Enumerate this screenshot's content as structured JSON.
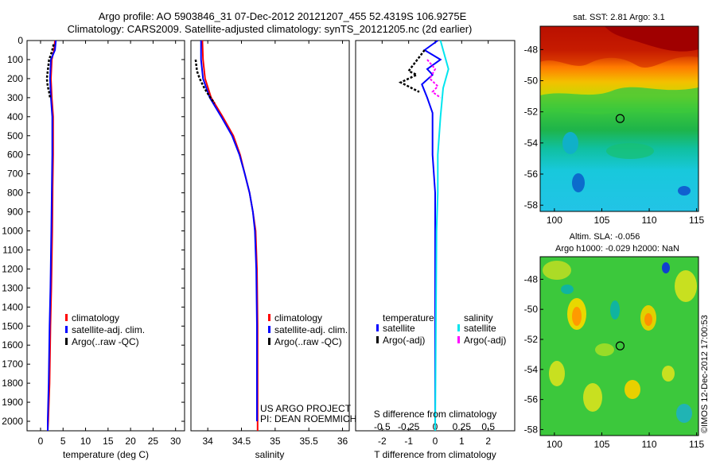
{
  "header": {
    "line1": "Argo profile: AO 5903846_31 07-Dec-2012 20121207_455 52.4319S 106.9275E",
    "line2": "Climatology: CARS2009. Satellite-adjusted climatology: synTS_20121205.nc (2d earlier)"
  },
  "colors": {
    "climatology": "#ff0000",
    "satellite": "#0000ff",
    "argo": "#000000",
    "sal_satellite": "#00e5ee",
    "sal_argo": "#ff00ff"
  },
  "depth_axis": {
    "range": [
      0,
      2050
    ],
    "ticks": [
      "0",
      "100",
      "200",
      "300",
      "400",
      "500",
      "600",
      "700",
      "800",
      "900",
      "1000",
      "1100",
      "1200",
      "1300",
      "1400",
      "1500",
      "1600",
      "1700",
      "1800",
      "1900",
      "2000"
    ]
  },
  "legend": {
    "climatology": "climatology",
    "satellite_clim": "satellite-adj. clim.",
    "argo_raw": "Argo(..raw -QC)",
    "temperature_head": "temperature",
    "salinity_head": "salinity",
    "satellite": "satellite",
    "argo_adj": "Argo(-adj)"
  },
  "chart_data": [
    {
      "id": "temperature",
      "type": "line",
      "xlabel": "temperature (deg C)",
      "ylabel": "depth",
      "xlim": [
        -3,
        32
      ],
      "ylim": [
        2050,
        0
      ],
      "xticks": [
        0,
        5,
        10,
        15,
        20,
        25,
        30
      ],
      "xticklabels": [
        "0",
        "5",
        "10",
        "15",
        "20",
        "25",
        "30"
      ],
      "series": [
        {
          "name": "climatology",
          "color_key": "climatology",
          "points": [
            [
              3.2,
              0
            ],
            [
              3.0,
              50
            ],
            [
              2.5,
              100
            ],
            [
              2.3,
              200
            ],
            [
              2.5,
              300
            ],
            [
              2.8,
              400
            ],
            [
              2.8,
              600
            ],
            [
              2.7,
              770
            ],
            [
              2.6,
              1000
            ],
            [
              2.4,
              1300
            ],
            [
              2.2,
              1500
            ],
            [
              2.0,
              1800
            ],
            [
              1.7,
              2000
            ],
            [
              1.6,
              2050
            ]
          ]
        },
        {
          "name": "satellite-adj. clim.",
          "color_key": "satellite",
          "points": [
            [
              3.4,
              0
            ],
            [
              3.2,
              50
            ],
            [
              2.3,
              100
            ],
            [
              2.1,
              200
            ],
            [
              2.3,
              300
            ],
            [
              2.6,
              400
            ],
            [
              2.6,
              600
            ],
            [
              2.5,
              800
            ],
            [
              2.4,
              1000
            ],
            [
              2.2,
              1300
            ],
            [
              2.0,
              1500
            ],
            [
              1.8,
              1800
            ],
            [
              1.6,
              2000
            ],
            [
              1.6,
              2050
            ]
          ]
        },
        {
          "name": "Argo(..raw -QC)",
          "color_key": "argo",
          "points": [
            [
              2.9,
              20
            ],
            [
              2.5,
              60
            ],
            [
              1.9,
              100
            ],
            [
              1.6,
              160
            ],
            [
              1.4,
              200
            ],
            [
              1.6,
              240
            ],
            [
              1.9,
              270
            ],
            [
              2.1,
              300
            ]
          ]
        }
      ],
      "annotations": []
    },
    {
      "id": "salinity",
      "type": "line",
      "xlabel": "salinity",
      "ylabel": "depth",
      "xlim": [
        33.75,
        36.1
      ],
      "ylim": [
        2050,
        0
      ],
      "xticks": [
        34,
        34.5,
        35,
        35.5,
        36
      ],
      "xticklabels": [
        "34",
        "34.5",
        "35",
        "35.5",
        "36"
      ],
      "series": [
        {
          "name": "climatology",
          "color_key": "climatology",
          "points": [
            [
              33.92,
              0
            ],
            [
              33.93,
              100
            ],
            [
              33.96,
              200
            ],
            [
              34.05,
              300
            ],
            [
              34.22,
              400
            ],
            [
              34.38,
              500
            ],
            [
              34.48,
              600
            ],
            [
              34.55,
              700
            ],
            [
              34.62,
              800
            ],
            [
              34.67,
              900
            ],
            [
              34.71,
              1000
            ],
            [
              34.73,
              1200
            ],
            [
              34.74,
              1500
            ],
            [
              34.74,
              2050
            ]
          ]
        },
        {
          "name": "satellite-adj. clim.",
          "color_key": "satellite",
          "points": [
            [
              33.9,
              0
            ],
            [
              33.9,
              100
            ],
            [
              33.93,
              200
            ],
            [
              34.03,
              300
            ],
            [
              34.2,
              400
            ],
            [
              34.36,
              500
            ],
            [
              34.47,
              600
            ],
            [
              34.55,
              700
            ],
            [
              34.62,
              800
            ],
            [
              34.67,
              900
            ],
            [
              34.7,
              1000
            ],
            [
              34.72,
              1200
            ],
            [
              34.73,
              1500
            ],
            [
              34.73,
              2000
            ]
          ]
        },
        {
          "name": "Argo(..raw -QC)",
          "color_key": "argo",
          "points": [
            [
              33.82,
              100
            ],
            [
              33.84,
              160
            ],
            [
              33.88,
              200
            ],
            [
              33.95,
              250
            ],
            [
              34.02,
              290
            ],
            [
              34.1,
              330
            ]
          ]
        }
      ],
      "annotations": [
        "US ARGO PROJECT",
        "PI: DEAN ROEMMICH"
      ]
    },
    {
      "id": "difference",
      "type": "line",
      "xlabel": "T difference from climatology",
      "top_xlabel": "S difference from climatology",
      "ylabel": "depth",
      "xlim": [
        -3,
        3
      ],
      "ylim": [
        2050,
        0
      ],
      "xticks": [
        -2,
        -1,
        0,
        1,
        2
      ],
      "xticklabels": [
        "-2",
        "-1",
        "0",
        "1",
        "2"
      ],
      "s_xticks": [
        -2,
        -1,
        0,
        1,
        2
      ],
      "s_xticklabels": [
        "-0.5",
        "-0.25",
        "0",
        "0.25",
        "0.5"
      ],
      "series": [
        {
          "name": "temperature satellite",
          "color_key": "satellite",
          "points": [
            [
              0.1,
              0
            ],
            [
              -0.4,
              50
            ],
            [
              0.2,
              100
            ],
            [
              -0.3,
              150
            ],
            [
              -0.1,
              180
            ],
            [
              -0.5,
              230
            ],
            [
              -0.3,
              300
            ],
            [
              -0.1,
              380
            ],
            [
              -0.1,
              600
            ],
            [
              0,
              800
            ],
            [
              0,
              1000
            ],
            [
              0,
              2050
            ]
          ]
        },
        {
          "name": "temperature Argo(-adj)",
          "color_key": "argo",
          "points": [
            [
              -0.4,
              50
            ],
            [
              -1.0,
              160
            ],
            [
              -0.7,
              180
            ],
            [
              -1.3,
              220
            ],
            [
              -0.6,
              270
            ]
          ]
        },
        {
          "name": "salinity satellite",
          "color_key": "sal_satellite",
          "points": [
            [
              0.2,
              0
            ],
            [
              0.3,
              50
            ],
            [
              0.5,
              150
            ],
            [
              0.3,
              250
            ],
            [
              0.2,
              400
            ],
            [
              0.1,
              600
            ],
            [
              0.1,
              800
            ],
            [
              0.05,
              1000
            ],
            [
              0,
              2050
            ]
          ]
        },
        {
          "name": "salinity Argo(-adj)",
          "color_key": "sal_argo",
          "points": [
            [
              -0.3,
              100
            ],
            [
              0,
              150
            ],
            [
              -0.2,
              200
            ],
            [
              0.1,
              240
            ],
            [
              -0.1,
              270
            ],
            [
              0.2,
              300
            ]
          ]
        }
      ],
      "annotations": []
    },
    {
      "id": "sst_map",
      "type": "heatmap",
      "title": "sat. SST: 2.81 Argo: 3.1",
      "xlim": [
        98.5,
        115.2
      ],
      "ylim": [
        -58.4,
        -46.5
      ],
      "xticks": [
        100,
        105,
        110,
        115
      ],
      "xticklabels": [
        "100",
        "105",
        "110",
        "115"
      ],
      "yticks": [
        -48,
        -50,
        -52,
        -54,
        -56,
        -58
      ],
      "yticklabels": [
        "-48",
        "-50",
        "-52",
        "-54",
        "-56",
        "-58"
      ],
      "marker": {
        "lon": 106.93,
        "lat": -52.43
      }
    },
    {
      "id": "sla_map",
      "type": "heatmap",
      "title": "Altim. SLA: -0.056",
      "subtitle": "Argo h1000: -0.029 h2000: NaN",
      "xlim": [
        98.5,
        115.2
      ],
      "ylim": [
        -58.4,
        -46.5
      ],
      "xticks": [
        100,
        105,
        110,
        115
      ],
      "xticklabels": [
        "100",
        "105",
        "110",
        "115"
      ],
      "yticks": [
        -48,
        -50,
        -52,
        -54,
        -56,
        -58
      ],
      "yticklabels": [
        "-48",
        "-50",
        "-52",
        "-54",
        "-56",
        "-58"
      ],
      "marker": {
        "lon": 106.93,
        "lat": -52.43
      }
    }
  ],
  "footer": {
    "stamp": "©IMOS 12-Dec-2012 17:00:53"
  }
}
